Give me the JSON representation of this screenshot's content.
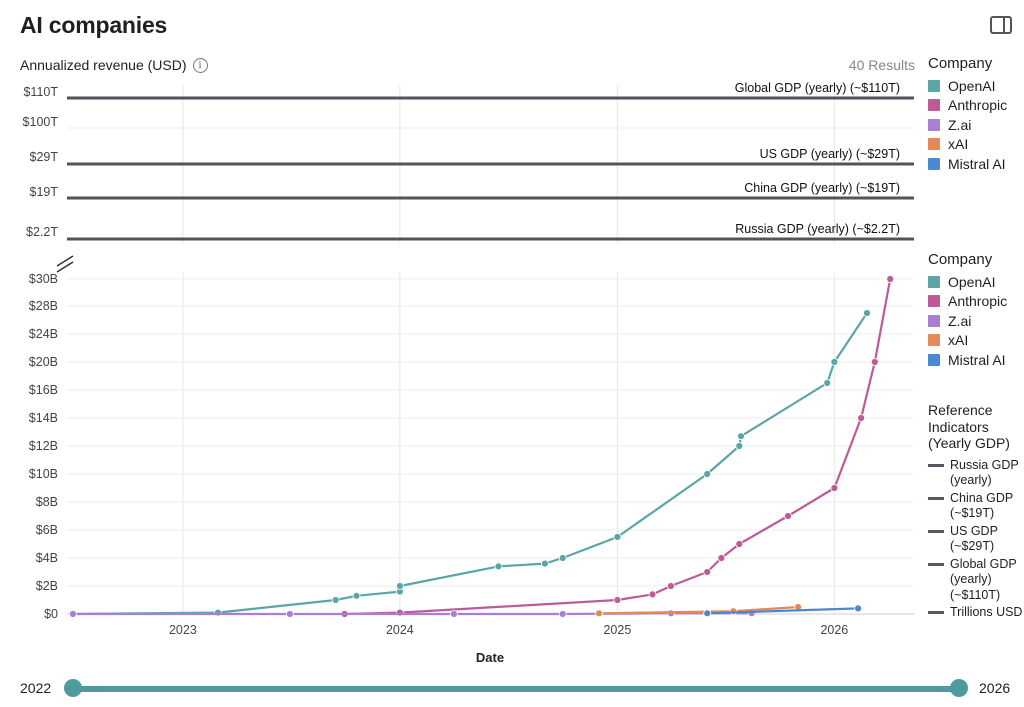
{
  "title": "AI companies",
  "subtitle": "Annualized revenue (USD)",
  "results": "40 Results",
  "x_axis_label": "Date",
  "legend": {
    "title": "Company",
    "items": [
      {
        "name": "OpenAI",
        "color": "#5aa5a6"
      },
      {
        "name": "Anthropic",
        "color": "#bd5b97"
      },
      {
        "name": "Z.ai",
        "color": "#a77fd5"
      },
      {
        "name": "xAI",
        "color": "#e48a58"
      },
      {
        "name": "Mistral AI",
        "color": "#4a88cf"
      }
    ]
  },
  "ref_legend": {
    "title": "Reference Indicators (Yearly GDP)",
    "items": [
      "Russia GDP (yearly)",
      "China GDP (~$19T)",
      "US GDP (~$29T)",
      "Global GDP (yearly) (~$110T)",
      "Trillions USD"
    ]
  },
  "slider": {
    "start": "2022",
    "end": "2026"
  },
  "chart_data": {
    "type": "line",
    "title": "AI companies",
    "xlabel": "Date",
    "ylabel": "Annualized revenue (USD)",
    "xlim": [
      "2022-06-20",
      "2026-05-15"
    ],
    "x_ticks": [
      {
        "date": "2023-01-01",
        "label": "2023"
      },
      {
        "date": "2024-01-01",
        "label": "2024"
      },
      {
        "date": "2025-01-01",
        "label": "2025"
      },
      {
        "date": "2026-01-01",
        "label": "2026"
      }
    ],
    "upper_panel": {
      "tick_labels": [
        "$110T",
        "$100T",
        "$29T",
        "$19T",
        "$2.2T"
      ],
      "reference_lines": [
        {
          "label": "Global GDP (yearly) (~$110T)",
          "value": "$110T"
        },
        {
          "label": "US GDP (yearly) (~$29T)",
          "value": "$29T"
        },
        {
          "label": "China GDP (yearly) (~$19T)",
          "value": "$19T"
        },
        {
          "label": "Russia GDP (yearly) (~$2.2T)",
          "value": "$2.2T"
        }
      ]
    },
    "lower_panel": {
      "ylim": [
        0,
        30
      ],
      "unit": "billions USD",
      "y_ticks": [
        {
          "value": 0,
          "label": "$0"
        },
        {
          "value": 2,
          "label": "$2B"
        },
        {
          "value": 4,
          "label": "$4B"
        },
        {
          "value": 6,
          "label": "$6B"
        },
        {
          "value": 8,
          "label": "$8B"
        },
        {
          "value": 10,
          "label": "$10B"
        },
        {
          "value": 12,
          "label": "$12B"
        },
        {
          "value": 14,
          "label": "$14B"
        },
        {
          "value": 16,
          "label": "$16B"
        },
        {
          "value": 20,
          "label": "$20B"
        },
        {
          "value": 24,
          "label": "$24B"
        },
        {
          "value": 28,
          "label": "$28B"
        },
        {
          "value": 30,
          "label": "$30B"
        }
      ]
    },
    "series": [
      {
        "name": "OpenAI",
        "color": "#5aa5a6",
        "points": [
          [
            "2022-06-30",
            0
          ],
          [
            "2023-03-01",
            0.1
          ],
          [
            "2023-09-15",
            1.0
          ],
          [
            "2023-10-20",
            1.3
          ],
          [
            "2024-01-01",
            1.6
          ],
          [
            "2024-01-01",
            2.0
          ],
          [
            "2024-06-15",
            3.4
          ],
          [
            "2024-09-01",
            3.6
          ],
          [
            "2024-10-01",
            4.0
          ],
          [
            "2025-01-01",
            5.5
          ],
          [
            "2025-06-01",
            10.0
          ],
          [
            "2025-07-25",
            12.0
          ],
          [
            "2025-07-28",
            12.7
          ],
          [
            "2025-12-20",
            17.0
          ],
          [
            "2026-01-01",
            20.0
          ],
          [
            "2026-02-25",
            27.0
          ]
        ]
      },
      {
        "name": "Anthropic",
        "color": "#bd5b97",
        "points": [
          [
            "2023-09-30",
            0
          ],
          [
            "2024-01-01",
            0.1
          ],
          [
            "2025-01-01",
            1.0
          ],
          [
            "2025-03-01",
            1.4
          ],
          [
            "2025-04-01",
            2.0
          ],
          [
            "2025-06-01",
            3.0
          ],
          [
            "2025-06-25",
            4.0
          ],
          [
            "2025-07-25",
            5.0
          ],
          [
            "2025-10-15",
            7.0
          ],
          [
            "2026-01-01",
            9.0
          ],
          [
            "2026-02-15",
            14.0
          ],
          [
            "2026-03-10",
            20.0
          ],
          [
            "2026-04-05",
            30.0
          ]
        ]
      },
      {
        "name": "Z.ai",
        "color": "#a77fd5",
        "points": [
          [
            "2022-06-30",
            0
          ],
          [
            "2023-06-30",
            0
          ],
          [
            "2024-04-01",
            0
          ],
          [
            "2024-10-01",
            0
          ],
          [
            "2025-04-01",
            0.05
          ],
          [
            "2025-08-15",
            0.05
          ]
        ]
      },
      {
        "name": "xAI",
        "color": "#e48a58",
        "points": [
          [
            "2024-12-01",
            0.05
          ],
          [
            "2025-07-15",
            0.2
          ],
          [
            "2025-11-01",
            0.5
          ]
        ]
      },
      {
        "name": "Mistral AI",
        "color": "#4a88cf",
        "points": [
          [
            "2025-06-01",
            0.05
          ],
          [
            "2026-02-10",
            0.4
          ]
        ]
      }
    ]
  }
}
